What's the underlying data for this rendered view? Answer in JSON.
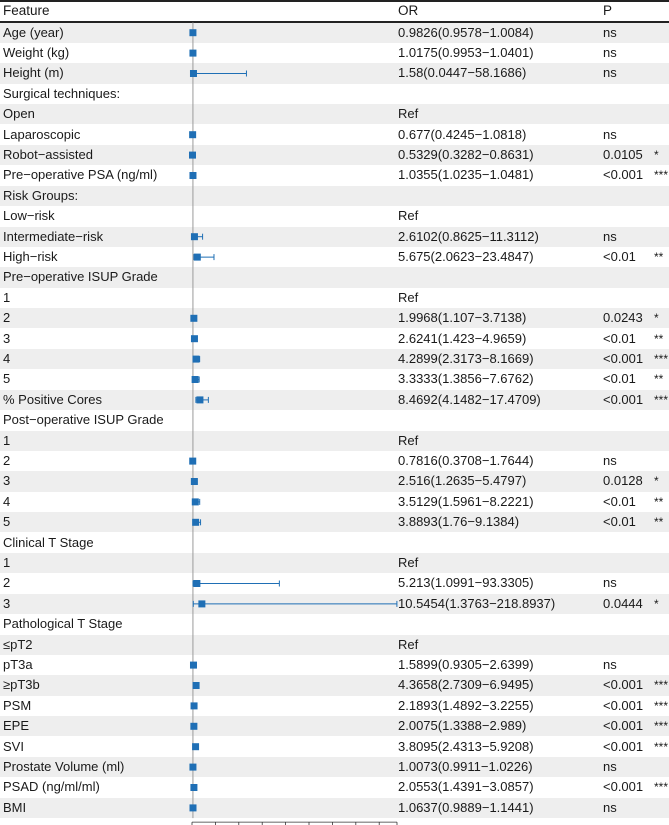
{
  "headers": {
    "feature": "Feature",
    "or": "OR",
    "p": "P"
  },
  "chart_data": {
    "type": "forest",
    "title": "",
    "xlabel": "",
    "x_ticks": [
      "0",
      "25",
      "50",
      "75",
      "100",
      "125",
      "150",
      "175",
      "200",
      "219"
    ],
    "xlim": [
      0,
      219
    ],
    "reference_line": 1,
    "rows": [
      {
        "label": "Age (year)",
        "or": 0.9826,
        "low": 0.9578,
        "high": 1.0084,
        "or_text": "0.9826(0.9578−1.0084)",
        "p": "ns",
        "stars": ""
      },
      {
        "label": "Weight (kg)",
        "or": 1.0175,
        "low": 0.9953,
        "high": 1.0401,
        "or_text": "1.0175(0.9953−1.0401)",
        "p": "ns",
        "stars": ""
      },
      {
        "label": "Height (m)",
        "or": 1.58,
        "low": 0.0447,
        "high": 58.1686,
        "or_text": "1.58(0.0447−58.1686)",
        "p": "ns",
        "stars": ""
      },
      {
        "label": "Surgical techniques:",
        "or_text": "",
        "p": "",
        "stars": ""
      },
      {
        "label": "Open",
        "or_text": "Ref",
        "p": "",
        "stars": ""
      },
      {
        "label": "Laparoscopic",
        "or": 0.677,
        "low": 0.4245,
        "high": 1.0818,
        "or_text": "0.677(0.4245−1.0818)",
        "p": "ns",
        "stars": ""
      },
      {
        "label": "Robot−assisted",
        "or": 0.5329,
        "low": 0.3282,
        "high": 0.8631,
        "or_text": "0.5329(0.3282−0.8631)",
        "p": "0.0105",
        "stars": "*"
      },
      {
        "label": "Pre−operative PSA (ng/ml)",
        "or": 1.0355,
        "low": 1.0235,
        "high": 1.0481,
        "or_text": "1.0355(1.0235−1.0481)",
        "p": "<0.001",
        "stars": "***"
      },
      {
        "label": "Risk Groups:",
        "or_text": "",
        "p": "",
        "stars": ""
      },
      {
        "label": "Low−risk",
        "or_text": "Ref",
        "p": "",
        "stars": ""
      },
      {
        "label": "Intermediate−risk",
        "or": 2.6102,
        "low": 0.8625,
        "high": 11.3112,
        "or_text": "2.6102(0.8625−11.3112)",
        "p": "ns",
        "stars": ""
      },
      {
        "label": "High−risk",
        "or": 5.675,
        "low": 2.0623,
        "high": 23.4847,
        "or_text": "5.675(2.0623−23.4847)",
        "p": "<0.01",
        "stars": "**"
      },
      {
        "label": "Pre−operative ISUP  Grade",
        "or_text": "",
        "p": "",
        "stars": ""
      },
      {
        "label": "1",
        "or_text": "Ref",
        "p": "",
        "stars": ""
      },
      {
        "label": "2",
        "or": 1.9968,
        "low": 1.107,
        "high": 3.7138,
        "or_text": "1.9968(1.107−3.7138)",
        "p": "0.0243",
        "stars": "*"
      },
      {
        "label": "3",
        "or": 2.6241,
        "low": 1.423,
        "high": 4.9659,
        "or_text": "2.6241(1.423−4.9659)",
        "p": "<0.01",
        "stars": "**"
      },
      {
        "label": "4",
        "or": 4.2899,
        "low": 2.3173,
        "high": 8.1669,
        "or_text": "4.2899(2.3173−8.1669)",
        "p": "<0.001",
        "stars": "***"
      },
      {
        "label": "5",
        "or": 3.3333,
        "low": 1.3856,
        "high": 7.6762,
        "or_text": "3.3333(1.3856−7.6762)",
        "p": "<0.01",
        "stars": "**"
      },
      {
        "label": "% Positive Cores",
        "or": 8.4692,
        "low": 4.1482,
        "high": 17.4709,
        "or_text": "8.4692(4.1482−17.4709)",
        "p": "<0.001",
        "stars": "***"
      },
      {
        "label": "Post−operative ISUP Grade",
        "or_text": "",
        "p": "",
        "stars": ""
      },
      {
        "label": "1",
        "or_text": "Ref",
        "p": "",
        "stars": ""
      },
      {
        "label": "2",
        "or": 0.7816,
        "low": 0.3708,
        "high": 1.7644,
        "or_text": "0.7816(0.3708−1.7644)",
        "p": "ns",
        "stars": ""
      },
      {
        "label": "3",
        "or": 2.516,
        "low": 1.2635,
        "high": 5.4797,
        "or_text": "2.516(1.2635−5.4797)",
        "p": "0.0128",
        "stars": "*"
      },
      {
        "label": "4",
        "or": 3.5129,
        "low": 1.5961,
        "high": 8.2221,
        "or_text": "3.5129(1.5961−8.2221)",
        "p": "<0.01",
        "stars": "**"
      },
      {
        "label": "5",
        "or": 3.8893,
        "low": 1.76,
        "high": 9.1384,
        "or_text": "3.8893(1.76−9.1384)",
        "p": "<0.01",
        "stars": "**"
      },
      {
        "label": "Clinical T Stage",
        "or_text": "",
        "p": "",
        "stars": ""
      },
      {
        "label": "1",
        "or_text": "Ref",
        "p": "",
        "stars": ""
      },
      {
        "label": "2",
        "or": 5.213,
        "low": 1.0991,
        "high": 93.3305,
        "or_text": "5.213(1.0991−93.3305)",
        "p": "ns",
        "stars": ""
      },
      {
        "label": "3",
        "or": 10.5454,
        "low": 1.3763,
        "high": 218.8937,
        "or_text": "10.5454(1.3763−218.8937)",
        "p": "0.0444",
        "stars": "*"
      },
      {
        "label": "Pathological T Stage",
        "or_text": "",
        "p": "",
        "stars": ""
      },
      {
        "label": "≤pT2",
        "or_text": "Ref",
        "p": "",
        "stars": ""
      },
      {
        "label": "pT3a",
        "or": 1.5899,
        "low": 0.9305,
        "high": 2.6399,
        "or_text": "1.5899(0.9305−2.6399)",
        "p": "ns",
        "stars": ""
      },
      {
        "label": "≥pT3b",
        "or": 4.3658,
        "low": 2.7309,
        "high": 6.9495,
        "or_text": "4.3658(2.7309−6.9495)",
        "p": "<0.001",
        "stars": "***"
      },
      {
        "label": "PSM",
        "or": 2.1893,
        "low": 1.4892,
        "high": 3.2255,
        "or_text": "2.1893(1.4892−3.2255)",
        "p": "<0.001",
        "stars": "***"
      },
      {
        "label": "EPE",
        "or": 2.0075,
        "low": 1.3388,
        "high": 2.989,
        "or_text": "2.0075(1.3388−2.989)",
        "p": "<0.001",
        "stars": "***"
      },
      {
        "label": "SVI",
        "or": 3.8095,
        "low": 2.4313,
        "high": 5.9208,
        "or_text": "3.8095(2.4313−5.9208)",
        "p": "<0.001",
        "stars": "***"
      },
      {
        "label": "Prostate Volume (ml)",
        "or": 1.0073,
        "low": 0.9911,
        "high": 1.0226,
        "or_text": "1.0073(0.9911−1.0226)",
        "p": "ns",
        "stars": ""
      },
      {
        "label": "PSAD (ng/ml/ml)",
        "or": 2.0553,
        "low": 1.4391,
        "high": 3.0857,
        "or_text": "2.0553(1.4391−3.0857)",
        "p": "<0.001",
        "stars": "***"
      },
      {
        "label": "BMI",
        "or": 1.0637,
        "low": 0.9889,
        "high": 1.1441,
        "or_text": "1.0637(0.9889−1.1441)",
        "p": "ns",
        "stars": ""
      }
    ]
  },
  "colors": {
    "marker": "#1f6fb5",
    "stripe": "#eeeeee",
    "text": "#1a1a1a",
    "refline": "#9a9a9a"
  }
}
